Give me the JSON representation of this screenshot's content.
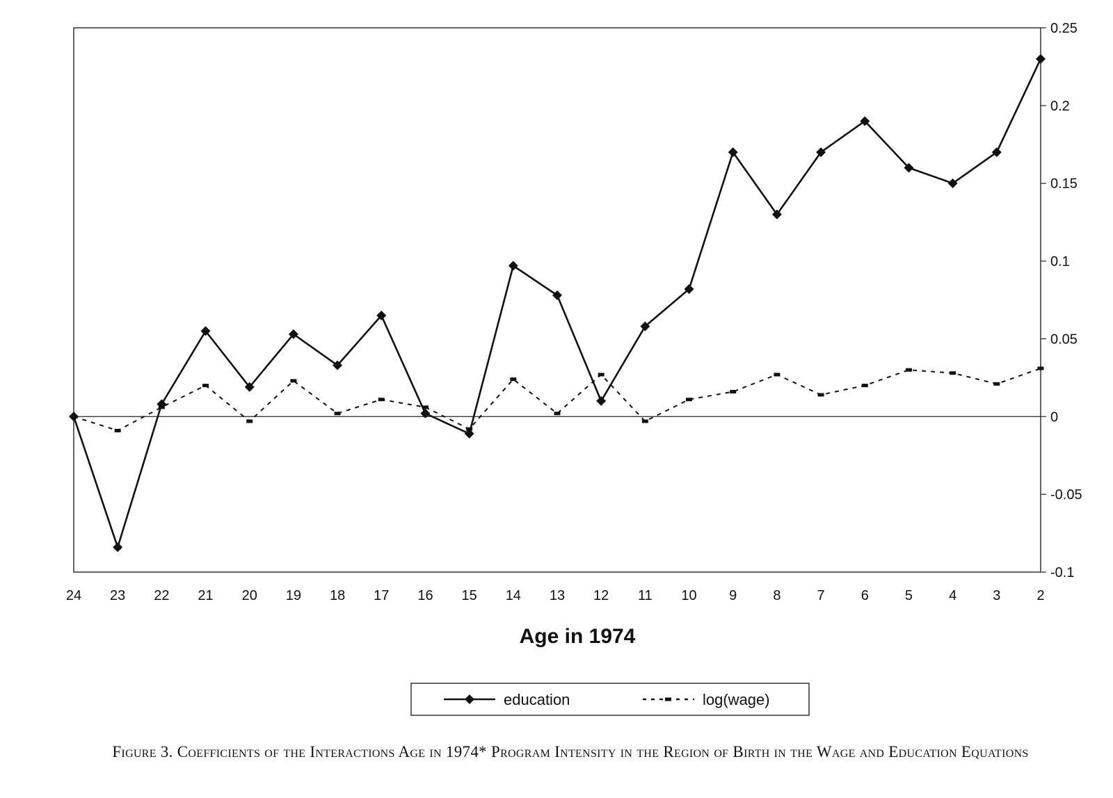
{
  "chart_data": {
    "type": "line",
    "categories": [
      "24",
      "23",
      "22",
      "21",
      "20",
      "19",
      "18",
      "17",
      "16",
      "15",
      "14",
      "13",
      "12",
      "11",
      "10",
      "9",
      "8",
      "7",
      "6",
      "5",
      "4",
      "3",
      "2"
    ],
    "series": [
      {
        "name": "education",
        "style": "solid",
        "marker": "diamond",
        "values": [
          0,
          -0.084,
          0.008,
          0.055,
          0.019,
          0.053,
          0.033,
          0.065,
          0.002,
          -0.011,
          0.097,
          0.078,
          0.01,
          0.058,
          0.082,
          0.17,
          0.13,
          0.17,
          0.19,
          0.16,
          0.15,
          0.17,
          0.23
        ]
      },
      {
        "name": "log(wage)",
        "style": "dashed",
        "marker": "dash",
        "values": [
          0,
          -0.009,
          0.006,
          0.02,
          -0.003,
          0.023,
          0.002,
          0.011,
          0.006,
          -0.008,
          0.024,
          0.002,
          0.027,
          -0.003,
          0.011,
          0.016,
          0.027,
          0.014,
          0.02,
          0.03,
          0.028,
          0.021,
          0.031
        ]
      }
    ],
    "xlabel": "Age in 1974",
    "ylabel": "",
    "ylim": [
      -0.1,
      0.25
    ],
    "yticks": [
      "0.25",
      "0.2",
      "0.15",
      "0.1",
      "0.05",
      "0",
      "-0.05",
      "-0.1"
    ],
    "yaxis_side": "right",
    "grid": false,
    "legend_position": "bottom"
  },
  "caption": {
    "text": "Figure 3. Coefficients of the Interactions Age in 1974* Program Intensity in the Region of Birth in the Wage and Education Equations"
  },
  "colors": {
    "line": "#111111",
    "background": "#ffffff"
  }
}
